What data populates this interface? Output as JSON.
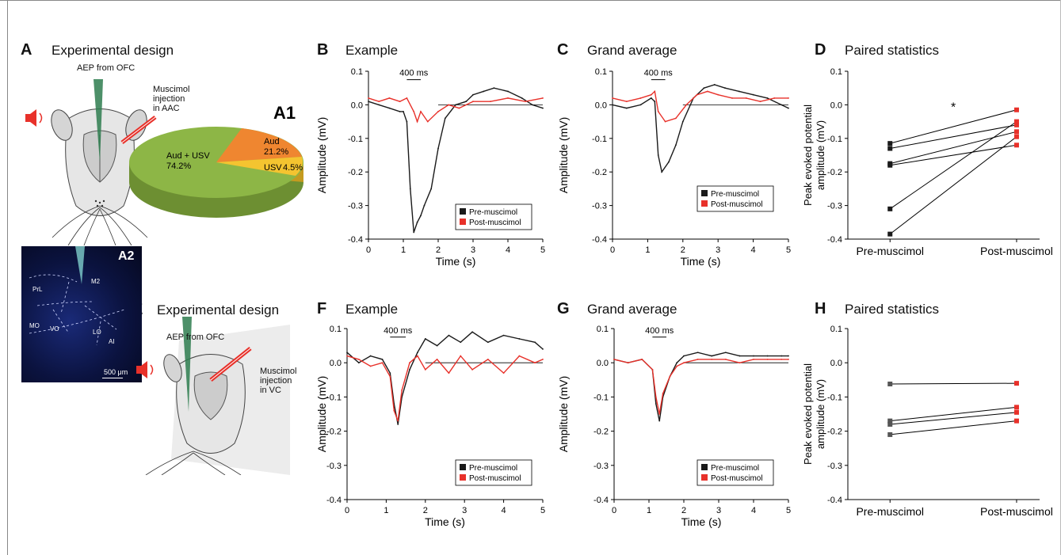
{
  "panels": {
    "A": {
      "letter": "A",
      "title": "Experimental design"
    },
    "B": {
      "letter": "B",
      "title": "Example"
    },
    "C": {
      "letter": "C",
      "title": "Grand average"
    },
    "D": {
      "letter": "D",
      "title": "Paired statistics"
    },
    "E": {
      "letter": "E",
      "title": "Experimental design"
    },
    "F": {
      "letter": "F",
      "title": "Example"
    },
    "G": {
      "letter": "G",
      "title": "Grand average"
    },
    "H": {
      "letter": "H",
      "title": "Paired statistics"
    }
  },
  "schematic_A": {
    "aep": "AEP from OFC",
    "injection": [
      "Muscimol",
      "injection",
      "in AAC"
    ]
  },
  "schematic_E": {
    "aep": "AEP from OFC",
    "injection": [
      "Muscimol",
      "injection",
      "in VC"
    ]
  },
  "pie_A1": {
    "label": "A1",
    "slices": [
      {
        "name": "Aud + USV",
        "value_text": "74.2%",
        "value": 74.2,
        "color": "#8db646"
      },
      {
        "name": "Aud",
        "value_text": "21.2%",
        "value": 21.2,
        "color": "#ef8630"
      },
      {
        "name": "USV",
        "value_text": "4.5%",
        "value": 4.5,
        "color": "#f4c430"
      }
    ]
  },
  "micrograph_A2": {
    "label": "A2",
    "regions": [
      "PrL",
      "M2",
      "MO",
      "VO",
      "LO",
      "AI"
    ],
    "scale": "500 μm"
  },
  "colors": {
    "pre": "#1a1a1a",
    "post": "#e8312a"
  },
  "chart_data": [
    {
      "panel": "B",
      "type": "line",
      "xlabel": "Time (s)",
      "ylabel": "Amplitude (mV)",
      "xlim": [
        0,
        5
      ],
      "ylim": [
        -0.4,
        0.1
      ],
      "xticks": [
        "0",
        "1",
        "2",
        "3",
        "4",
        "5"
      ],
      "yticks": [
        "0.1",
        "0.0",
        "-0.1",
        "-0.2",
        "-0.3",
        "-0.4"
      ],
      "annotation": "400 ms",
      "series": [
        {
          "name": "Pre-muscimol",
          "x": [
            0,
            0.3,
            0.6,
            0.9,
            1.0,
            1.1,
            1.2,
            1.3,
            1.4,
            1.5,
            1.6,
            1.8,
            2.0,
            2.2,
            2.5,
            2.8,
            3.0,
            3.3,
            3.6,
            4.0,
            4.4,
            4.7,
            5.0
          ],
          "y": [
            0.01,
            0.0,
            -0.01,
            -0.02,
            -0.02,
            -0.05,
            -0.25,
            -0.38,
            -0.35,
            -0.33,
            -0.3,
            -0.25,
            -0.13,
            -0.04,
            0.0,
            0.01,
            0.03,
            0.04,
            0.05,
            0.04,
            0.02,
            0.0,
            -0.01
          ]
        },
        {
          "name": "Post-muscimol",
          "x": [
            0,
            0.3,
            0.6,
            0.9,
            1.1,
            1.3,
            1.4,
            1.5,
            1.7,
            2.0,
            2.3,
            2.6,
            3.0,
            3.5,
            4.0,
            4.5,
            5.0
          ],
          "y": [
            0.02,
            0.01,
            0.02,
            0.01,
            0.02,
            -0.02,
            -0.05,
            -0.02,
            -0.05,
            -0.02,
            0.0,
            -0.01,
            0.01,
            0.01,
            0.02,
            0.01,
            0.02
          ]
        }
      ]
    },
    {
      "panel": "C",
      "type": "line",
      "xlabel": "Time (s)",
      "ylabel": "Amplitude (mV)",
      "xlim": [
        0,
        5
      ],
      "ylim": [
        -0.4,
        0.1
      ],
      "xticks": [
        "0",
        "1",
        "2",
        "3",
        "4",
        "5"
      ],
      "yticks": [
        "0.1",
        "0.0",
        "-0.1",
        "-0.2",
        "-0.3",
        "-0.4"
      ],
      "annotation": "400 ms",
      "series": [
        {
          "name": "Pre-muscimol",
          "x": [
            0,
            0.4,
            0.8,
            1.1,
            1.2,
            1.3,
            1.4,
            1.6,
            1.8,
            2.0,
            2.3,
            2.6,
            2.9,
            3.2,
            3.6,
            4.0,
            4.4,
            4.8,
            5.0
          ],
          "y": [
            0.0,
            -0.01,
            0.0,
            0.02,
            0.01,
            -0.15,
            -0.2,
            -0.17,
            -0.12,
            -0.05,
            0.02,
            0.05,
            0.06,
            0.05,
            0.04,
            0.03,
            0.02,
            0.0,
            -0.01
          ]
        },
        {
          "name": "Post-muscimol",
          "x": [
            0,
            0.4,
            0.8,
            1.1,
            1.2,
            1.3,
            1.5,
            1.8,
            2.1,
            2.4,
            2.7,
            3.0,
            3.4,
            3.8,
            4.2,
            4.6,
            5.0
          ],
          "y": [
            0.02,
            0.01,
            0.02,
            0.03,
            0.04,
            -0.02,
            -0.05,
            -0.04,
            0.0,
            0.03,
            0.04,
            0.03,
            0.02,
            0.02,
            0.01,
            0.02,
            0.02
          ]
        }
      ]
    },
    {
      "panel": "D",
      "type": "scatter",
      "ylabel": "Peak evoked potential amplitude (mV)",
      "categories": [
        "Pre-muscimol",
        "Post-muscimol"
      ],
      "ylim": [
        -0.4,
        0.1
      ],
      "yticks": [
        "0.1",
        "0.0",
        "-0.1",
        "-0.2",
        "-0.3",
        "-0.4"
      ],
      "annotation": "*",
      "pairs": [
        [
          -0.115,
          -0.015
        ],
        [
          -0.13,
          -0.06
        ],
        [
          -0.175,
          -0.08
        ],
        [
          -0.18,
          -0.12
        ],
        [
          -0.31,
          -0.05
        ],
        [
          -0.385,
          -0.095
        ]
      ]
    },
    {
      "panel": "F",
      "type": "line",
      "xlabel": "Time (s)",
      "ylabel": "Amplitude (mV)",
      "xlim": [
        0,
        5
      ],
      "ylim": [
        -0.4,
        0.1
      ],
      "xticks": [
        "0",
        "1",
        "2",
        "3",
        "4",
        "5"
      ],
      "yticks": [
        "0.1",
        "0.0",
        "-0.1",
        "-0.2",
        "-0.3",
        "-0.4"
      ],
      "annotation": "400 ms",
      "series": [
        {
          "name": "Pre-muscimol",
          "x": [
            0,
            0.3,
            0.6,
            0.9,
            1.1,
            1.2,
            1.3,
            1.4,
            1.6,
            1.8,
            2.0,
            2.3,
            2.6,
            2.9,
            3.2,
            3.6,
            4.0,
            4.4,
            4.8,
            5.0
          ],
          "y": [
            0.03,
            0.0,
            0.02,
            0.01,
            -0.03,
            -0.12,
            -0.18,
            -0.1,
            -0.02,
            0.03,
            0.07,
            0.05,
            0.08,
            0.06,
            0.09,
            0.06,
            0.08,
            0.07,
            0.06,
            0.04
          ]
        },
        {
          "name": "Post-muscimol",
          "x": [
            0,
            0.3,
            0.6,
            0.9,
            1.1,
            1.2,
            1.3,
            1.4,
            1.6,
            1.8,
            2.0,
            2.3,
            2.6,
            2.9,
            3.2,
            3.6,
            4.0,
            4.4,
            4.8,
            5.0
          ],
          "y": [
            0.02,
            0.01,
            -0.01,
            0.0,
            -0.04,
            -0.14,
            -0.17,
            -0.08,
            0.0,
            0.02,
            -0.02,
            0.01,
            -0.03,
            0.02,
            -0.02,
            0.01,
            -0.03,
            0.02,
            0.0,
            0.01
          ]
        }
      ]
    },
    {
      "panel": "G",
      "type": "line",
      "xlabel": "Time (s)",
      "ylabel": "Amplitude (mV)",
      "xlim": [
        0,
        5
      ],
      "ylim": [
        -0.4,
        0.1
      ],
      "xticks": [
        "0",
        "1",
        "2",
        "3",
        "4",
        "5"
      ],
      "yticks": [
        "0.1",
        "0.0",
        "-0.1",
        "-0.2",
        "-0.3",
        "-0.4"
      ],
      "annotation": "400 ms",
      "series": [
        {
          "name": "Pre-muscimol",
          "x": [
            0,
            0.4,
            0.8,
            1.1,
            1.2,
            1.3,
            1.4,
            1.6,
            1.8,
            2.0,
            2.4,
            2.8,
            3.2,
            3.6,
            4.0,
            4.4,
            4.8,
            5.0
          ],
          "y": [
            0.01,
            0.0,
            0.01,
            -0.02,
            -0.12,
            -0.17,
            -0.1,
            -0.04,
            0.0,
            0.02,
            0.03,
            0.02,
            0.03,
            0.02,
            0.02,
            0.02,
            0.02,
            0.02
          ]
        },
        {
          "name": "Post-muscimol",
          "x": [
            0,
            0.4,
            0.8,
            1.1,
            1.2,
            1.3,
            1.4,
            1.6,
            1.8,
            2.0,
            2.4,
            2.8,
            3.2,
            3.6,
            4.0,
            4.4,
            4.8,
            5.0
          ],
          "y": [
            0.01,
            0.0,
            0.01,
            -0.02,
            -0.1,
            -0.15,
            -0.09,
            -0.04,
            -0.01,
            0.0,
            0.01,
            0.01,
            0.01,
            0.0,
            0.01,
            0.01,
            0.01,
            0.01
          ]
        }
      ]
    },
    {
      "panel": "H",
      "type": "scatter",
      "ylabel": "Peak evoked potential amplitude (mV)",
      "categories": [
        "Pre-muscimol",
        "Post-muscimol"
      ],
      "ylim": [
        -0.4,
        0.1
      ],
      "yticks": [
        "0.1",
        "0.0",
        "-0.1",
        "-0.2",
        "-0.3",
        "-0.4"
      ],
      "pairs": [
        [
          -0.062,
          -0.06
        ],
        [
          -0.17,
          -0.13
        ],
        [
          -0.18,
          -0.145
        ],
        [
          -0.21,
          -0.17
        ]
      ]
    }
  ]
}
